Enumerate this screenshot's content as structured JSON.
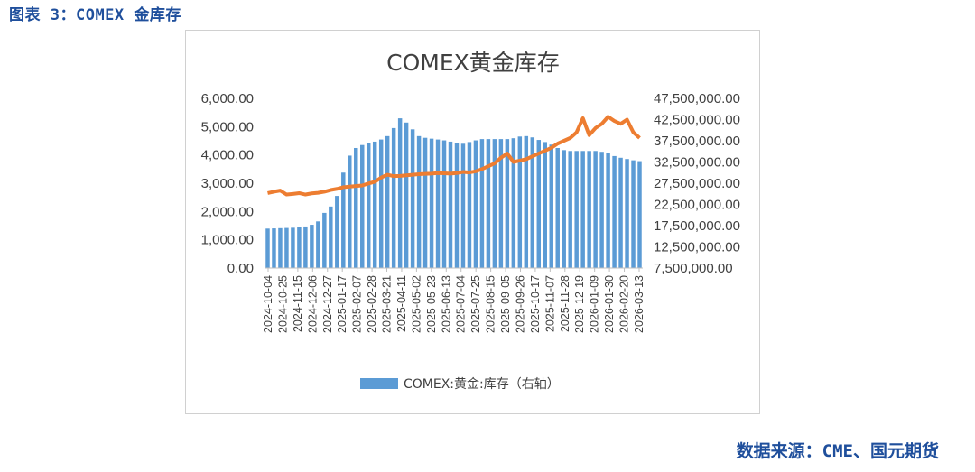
{
  "figure_caption": "图表 3：COMEX 金库存",
  "source_note": "数据来源：CME、国元期货",
  "chart_data": {
    "type": "bar",
    "title": "COMEX黄金库存",
    "left_axis": {
      "ticks": [
        "6,000.00",
        "5,000.00",
        "4,000.00",
        "3,000.00",
        "2,000.00",
        "1,000.00",
        "0.00"
      ],
      "ylim": [
        0,
        6000
      ]
    },
    "right_axis": {
      "ticks": [
        "47,500,000.00",
        "42,500,000.00",
        "37,500,000.00",
        "32,500,000.00",
        "27,500,000.00",
        "22,500,000.00",
        "17,500,000.00",
        "12,500,000.00",
        "7,500,000.00"
      ],
      "ylim": [
        7500000,
        47500000
      ]
    },
    "x_tick_labels": [
      "2024-10-04",
      "2024-10-25",
      "2024-11-15",
      "2024-12-06",
      "2024-12-27",
      "2025-01-17",
      "2025-02-07",
      "2025-02-28",
      "2025-03-21",
      "2025-04-11",
      "2025-05-02",
      "2025-05-23",
      "2025-06-13",
      "2025-07-04",
      "2025-07-25",
      "2025-08-15",
      "2025-09-05",
      "2025-09-26",
      "2025-10-17",
      "2025-11-07",
      "2025-11-28",
      "2025-12-19",
      "2026-01-09",
      "2026-01-30",
      "2026-02-20",
      "2026-03-13"
    ],
    "series": [
      {
        "name": "COMEX:黄金:库存（右轴）",
        "type": "bar",
        "axis": "right",
        "color": "#5b9bd5",
        "values": [
          16800000,
          16850000,
          16900000,
          16950000,
          17000000,
          17100000,
          17300000,
          17700000,
          18500000,
          20500000,
          22000000,
          24500000,
          30000000,
          34000000,
          35800000,
          36500000,
          37000000,
          37300000,
          37800000,
          38600000,
          40500000,
          42800000,
          41800000,
          40200000,
          38600000,
          38200000,
          38000000,
          37800000,
          37600000,
          37300000,
          37000000,
          36800000,
          37200000,
          37600000,
          37900000,
          37900000,
          37900000,
          37900000,
          37900000,
          38100000,
          38500000,
          38600000,
          38300000,
          37700000,
          37200000,
          36600000,
          35800000,
          35300000,
          35100000,
          35100000,
          35100000,
          35100000,
          35100000,
          34900000,
          34600000,
          33900000,
          33500000,
          33200000,
          32900000,
          32700000
        ]
      },
      {
        "name": "",
        "type": "line",
        "axis": "left",
        "color": "#ed7d31",
        "values": [
          2650,
          2700,
          2740,
          2600,
          2620,
          2650,
          2600,
          2640,
          2660,
          2700,
          2760,
          2800,
          2860,
          2880,
          2900,
          2920,
          2990,
          3050,
          3200,
          3300,
          3250,
          3260,
          3280,
          3300,
          3320,
          3330,
          3340,
          3360,
          3350,
          3340,
          3360,
          3400,
          3380,
          3420,
          3500,
          3600,
          3700,
          3900,
          4050,
          3750,
          3800,
          3850,
          3950,
          4050,
          4150,
          4250,
          4400,
          4500,
          4600,
          4800,
          5300,
          4700,
          4950,
          5100,
          5350,
          5200,
          5100,
          5250,
          4800,
          4600
        ]
      }
    ],
    "legend": [
      "COMEX:黄金:库存（右轴）"
    ],
    "legend_position": "bottom"
  }
}
